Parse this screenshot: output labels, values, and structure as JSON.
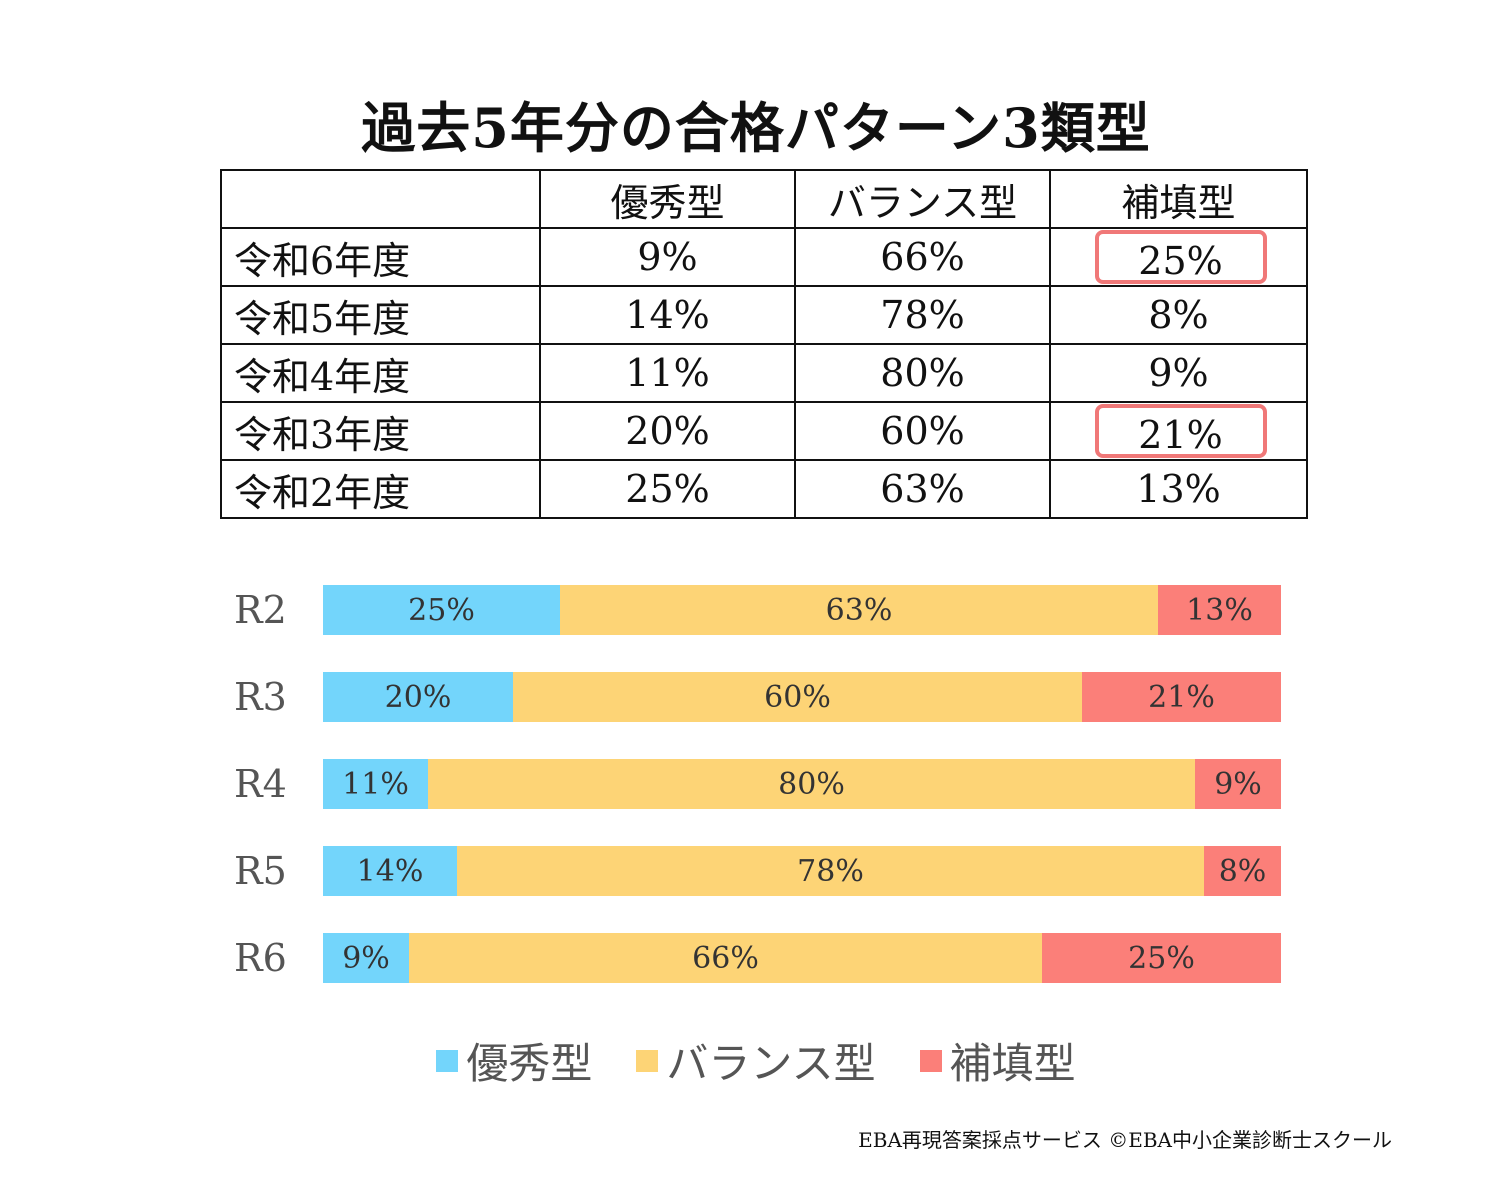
{
  "title": "過去5年分の合格パターン3類型",
  "table": {
    "corner": "",
    "headers": [
      "優秀型",
      "バランス型",
      "補填型"
    ],
    "rows": [
      {
        "label": "令和6年度",
        "cells": [
          "9%",
          "66%",
          "25%"
        ],
        "highlight": true
      },
      {
        "label": "令和5年度",
        "cells": [
          "14%",
          "78%",
          "8%"
        ],
        "highlight": false
      },
      {
        "label": "令和4年度",
        "cells": [
          "11%",
          "80%",
          "9%"
        ],
        "highlight": false
      },
      {
        "label": "令和3年度",
        "cells": [
          "20%",
          "60%",
          "21%"
        ],
        "highlight": true
      },
      {
        "label": "令和2年度",
        "cells": [
          "25%",
          "63%",
          "13%"
        ],
        "highlight": false
      }
    ]
  },
  "chart_data": {
    "type": "bar",
    "orientation": "horizontal",
    "stacked": true,
    "normalized": true,
    "categories": [
      "R2",
      "R3",
      "R4",
      "R5",
      "R6"
    ],
    "series": [
      {
        "name": "優秀型",
        "values": [
          25,
          20,
          11,
          14,
          9
        ],
        "labels": [
          "25%",
          "20%",
          "11%",
          "14%",
          "9%"
        ]
      },
      {
        "name": "バランス型",
        "values": [
          63,
          60,
          80,
          78,
          66
        ],
        "labels": [
          "63%",
          "60%",
          "80%",
          "78%",
          "66%"
        ]
      },
      {
        "name": "補填型",
        "values": [
          13,
          21,
          9,
          8,
          25
        ],
        "labels": [
          "13%",
          "21%",
          "9%",
          "8%",
          "25%"
        ]
      }
    ],
    "colors": [
      "#73d5fb",
      "#fdd476",
      "#fb7f79"
    ],
    "legend_position": "bottom",
    "xlim": [
      0,
      100
    ]
  },
  "legend": [
    {
      "label": "優秀型",
      "color": "#73d5fb"
    },
    {
      "label": "バランス型",
      "color": "#fdd476"
    },
    {
      "label": "補填型",
      "color": "#fb7f79"
    }
  ],
  "footer": "EBA再現答案採点サービス ©EBA中小企業診断士スクール",
  "highlight_color": "#f07878"
}
